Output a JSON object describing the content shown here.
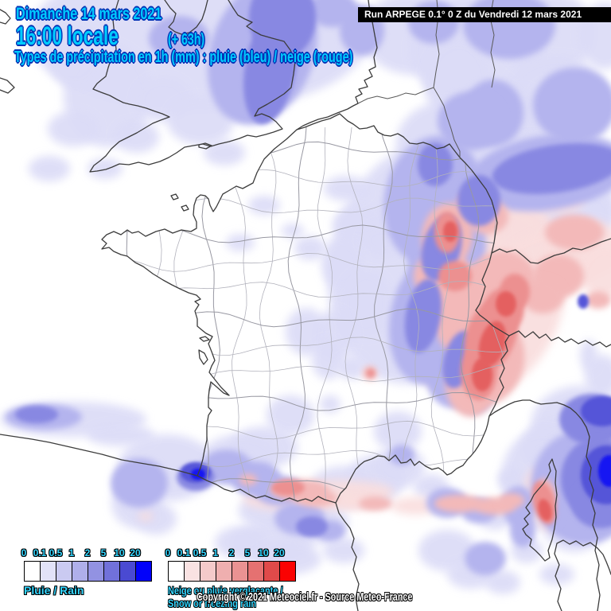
{
  "header": {
    "date_line": "Dimanche 14 mars 2021",
    "time_line": "16:00 locale",
    "time_offset": "(+ 63h)",
    "subtitle": "Types de précipitation en 1h (mm) : pluie (bleu) / neige (rouge)",
    "run_info": "Run ARPEGE 0.1° 0 Z du Vendredi 12 mars 2021",
    "text_color": "#00CCFF",
    "outline_color": "#0030B4"
  },
  "legend": {
    "tick_labels": [
      "0",
      "0.1",
      "0.5",
      "1",
      "2",
      "5",
      "10",
      "20"
    ],
    "rain": {
      "label": "Pluie / Rain",
      "colors": [
        "#FFFFFF",
        "#E2E2F8",
        "#CACAF1",
        "#AFAFEA",
        "#9292E2",
        "#7171DA",
        "#4A4AD2",
        "#0202FA"
      ]
    },
    "snow": {
      "label": "Neige ou pluie verglaçante / Snow or freezing rain",
      "colors": [
        "#FFFFFF",
        "#F9E2E2",
        "#F4CACA",
        "#EFAFAF",
        "#EA9292",
        "#E57171",
        "#E04A4A",
        "#FA0202"
      ]
    }
  },
  "footer": {
    "copyright": "Copyright © 2021 Meteociel.fr - Source Meteo-France"
  },
  "map": {
    "sea_land_color": "#FFFFFF",
    "coast_color": "#3C3C3C",
    "minor_border_color": "#5A5A5A",
    "department_color": "#B2B2BC",
    "region_color": "#9898A2",
    "rain_levels": {
      "1": "#DCDCF7",
      "2": "#B4B4EE",
      "3": "#8888E2",
      "4": "#5555D8",
      "5": "#1212F2"
    },
    "snow_levels": {
      "1": "#F9DEDE",
      "2": "#F3B9B9",
      "3": "#EC9090",
      "4": "#E46060"
    },
    "blobs": [
      [
        "b",
        1,
        250,
        45,
        215,
        95,
        0
      ],
      [
        "b",
        1,
        135,
        120,
        55,
        65,
        0
      ],
      [
        "b",
        1,
        95,
        70,
        35,
        40,
        0
      ],
      [
        "b",
        1,
        205,
        125,
        35,
        28,
        0
      ],
      [
        "b",
        1,
        172,
        172,
        28,
        20,
        0
      ],
      [
        "b",
        1,
        92,
        162,
        32,
        22,
        0
      ],
      [
        "b",
        1,
        62,
        212,
        26,
        16,
        0
      ],
      [
        "b",
        1,
        132,
        212,
        22,
        13,
        0
      ],
      [
        "b",
        1,
        282,
        192,
        26,
        16,
        0
      ],
      [
        "b",
        1,
        252,
        152,
        42,
        30,
        0
      ],
      [
        "b",
        1,
        332,
        258,
        20,
        12,
        0
      ],
      [
        "b",
        1,
        302,
        305,
        18,
        11,
        0
      ],
      [
        "b",
        1,
        368,
        290,
        14,
        9,
        0
      ],
      [
        "b",
        1,
        520,
        42,
        65,
        52,
        0
      ],
      [
        "b",
        1,
        600,
        62,
        85,
        72,
        0
      ],
      [
        "b",
        1,
        688,
        42,
        62,
        52,
        0
      ],
      [
        "b",
        1,
        700,
        132,
        70,
        62,
        0
      ],
      [
        "b",
        1,
        648,
        152,
        48,
        42,
        0
      ],
      [
        "b",
        1,
        575,
        102,
        42,
        52,
        0
      ],
      [
        "b",
        1,
        660,
        202,
        62,
        32,
        0
      ],
      [
        "b",
        1,
        760,
        45,
        32,
        42,
        0
      ],
      [
        "b",
        1,
        660,
        232,
        112,
        62,
        -5
      ],
      [
        "b",
        1,
        690,
        262,
        82,
        62,
        0
      ],
      [
        "b",
        1,
        700,
        268,
        72,
        42,
        0
      ],
      [
        "b",
        1,
        530,
        330,
        115,
        155,
        15
      ],
      [
        "b",
        1,
        560,
        180,
        62,
        52,
        0
      ],
      [
        "b",
        1,
        450,
        282,
        32,
        22,
        0
      ],
      [
        "b",
        1,
        430,
        332,
        26,
        32,
        0
      ],
      [
        "b",
        1,
        460,
        382,
        32,
        42,
        0
      ],
      [
        "b",
        1,
        420,
        422,
        26,
        32,
        0
      ],
      [
        "b",
        1,
        390,
        312,
        20,
        15,
        0
      ],
      [
        "b",
        1,
        480,
        302,
        26,
        20,
        0
      ],
      [
        "b",
        1,
        435,
        237,
        28,
        16,
        0
      ],
      [
        "b",
        1,
        385,
        417,
        26,
        30,
        0
      ],
      [
        "b",
        1,
        412,
        452,
        20,
        25,
        0
      ],
      [
        "b",
        1,
        442,
        462,
        18,
        15,
        0
      ],
      [
        "b",
        1,
        365,
        522,
        30,
        25,
        0
      ],
      [
        "b",
        1,
        332,
        562,
        42,
        26,
        0
      ],
      [
        "b",
        1,
        500,
        542,
        30,
        25,
        0
      ],
      [
        "b",
        1,
        302,
        572,
        46,
        26,
        0
      ],
      [
        "b",
        1,
        210,
        588,
        62,
        42,
        0
      ],
      [
        "b",
        1,
        172,
        632,
        32,
        32,
        0
      ],
      [
        "b",
        1,
        196,
        652,
        26,
        20,
        0
      ],
      [
        "b",
        1,
        342,
        642,
        42,
        24,
        0
      ],
      [
        "b",
        1,
        402,
        657,
        36,
        26,
        0
      ],
      [
        "b",
        1,
        432,
        612,
        42,
        26,
        0
      ],
      [
        "b",
        1,
        472,
        602,
        36,
        30,
        0
      ],
      [
        "b",
        1,
        502,
        587,
        32,
        26,
        0
      ],
      [
        "b",
        1,
        542,
        612,
        22,
        16,
        0
      ],
      [
        "b",
        1,
        622,
        652,
        20,
        14,
        0
      ],
      [
        "b",
        1,
        342,
        682,
        52,
        26,
        0
      ],
      [
        "b",
        1,
        302,
        682,
        32,
        20,
        0
      ],
      [
        "b",
        1,
        362,
        702,
        42,
        20,
        0
      ],
      [
        "b",
        1,
        432,
        692,
        26,
        16,
        0
      ],
      [
        "b",
        1,
        562,
        692,
        36,
        26,
        0
      ],
      [
        "b",
        1,
        592,
        722,
        30,
        18,
        0
      ],
      [
        "b",
        1,
        632,
        732,
        22,
        15,
        0
      ],
      [
        "b",
        1,
        92,
        527,
        92,
        22,
        0
      ],
      [
        "b",
        1,
        152,
        547,
        42,
        14,
        0
      ],
      [
        "b",
        1,
        730,
        532,
        62,
        47,
        0
      ],
      [
        "b",
        1,
        702,
        562,
        47,
        37,
        0
      ],
      [
        "b",
        1,
        682,
        602,
        52,
        62,
        0
      ],
      [
        "b",
        1,
        722,
        652,
        42,
        42,
        0
      ],
      [
        "b",
        1,
        662,
        692,
        20,
        16,
        0
      ],
      [
        "b",
        1,
        642,
        602,
        16,
        13,
        0
      ],
      [
        "b",
        1,
        757,
        472,
        22,
        26,
        0
      ],
      [
        "b",
        1,
        740,
        447,
        11,
        20,
        0
      ],
      [
        "b",
        1,
        415,
        508,
        13,
        11,
        0
      ],
      [
        "b",
        1,
        700,
        722,
        22,
        13,
        0
      ],
      [
        "b",
        2,
        330,
        65,
        65,
        95,
        20
      ],
      [
        "b",
        2,
        225,
        48,
        38,
        28,
        0
      ],
      [
        "b",
        2,
        455,
        38,
        28,
        32,
        0
      ],
      [
        "b",
        2,
        418,
        12,
        32,
        22,
        0
      ],
      [
        "b",
        2,
        545,
        28,
        32,
        27,
        0
      ],
      [
        "b",
        2,
        640,
        32,
        58,
        42,
        0
      ],
      [
        "b",
        2,
        620,
        142,
        38,
        42,
        0
      ],
      [
        "b",
        2,
        722,
        132,
        52,
        47,
        0
      ],
      [
        "b",
        2,
        592,
        152,
        42,
        37,
        0
      ],
      [
        "b",
        2,
        690,
        217,
        102,
        47,
        -8
      ],
      [
        "b",
        2,
        545,
        252,
        62,
        82,
        10
      ],
      [
        "b",
        2,
        562,
        322,
        47,
        72,
        15
      ],
      [
        "b",
        2,
        542,
        402,
        52,
        82,
        10
      ],
      [
        "b",
        2,
        577,
        457,
        42,
        57,
        15
      ],
      [
        "b",
        2,
        597,
        482,
        27,
        37,
        0
      ],
      [
        "b",
        2,
        285,
        587,
        32,
        22,
        0
      ],
      [
        "b",
        2,
        322,
        602,
        32,
        22,
        0
      ],
      [
        "b",
        2,
        352,
        617,
        32,
        19,
        0
      ],
      [
        "b",
        2,
        377,
        652,
        32,
        21,
        0
      ],
      [
        "b",
        2,
        562,
        632,
        26,
        19,
        0
      ],
      [
        "b",
        2,
        602,
        642,
        23,
        16,
        0
      ],
      [
        "b",
        2,
        610,
        702,
        26,
        21,
        0
      ],
      [
        "b",
        2,
        55,
        524,
        48,
        16,
        0
      ],
      [
        "b",
        2,
        652,
        637,
        21,
        26,
        0
      ],
      [
        "b",
        2,
        657,
        667,
        16,
        21,
        0
      ],
      [
        "b",
        2,
        735,
        612,
        68,
        72,
        0
      ],
      [
        "b",
        2,
        505,
        572,
        16,
        13,
        0
      ],
      [
        "b",
        2,
        415,
        667,
        19,
        13,
        0
      ],
      [
        "b",
        2,
        175,
        607,
        36,
        31,
        0
      ],
      [
        "b",
        2,
        695,
        642,
        10,
        20,
        0
      ],
      [
        "b",
        3,
        340,
        85,
        32,
        72,
        10
      ],
      [
        "b",
        3,
        355,
        22,
        42,
        52,
        0
      ],
      [
        "b",
        3,
        700,
        212,
        82,
        30,
        -8
      ],
      [
        "b",
        3,
        555,
        312,
        24,
        42,
        15
      ],
      [
        "b",
        3,
        532,
        397,
        22,
        47,
        10
      ],
      [
        "b",
        3,
        577,
        452,
        19,
        37,
        15
      ],
      [
        "b",
        3,
        602,
        252,
        27,
        32,
        0
      ],
      [
        "b",
        3,
        547,
        207,
        22,
        27,
        0
      ],
      [
        "b",
        3,
        246,
        600,
        24,
        17,
        0
      ],
      [
        "b",
        3,
        392,
        662,
        20,
        13,
        0
      ],
      [
        "b",
        3,
        46,
        521,
        27,
        11,
        0
      ],
      [
        "b",
        3,
        745,
        527,
        42,
        32,
        0
      ],
      [
        "b",
        3,
        752,
        602,
        47,
        52,
        0
      ],
      [
        "b",
        3,
        755,
        632,
        37,
        32,
        0
      ],
      [
        "b",
        4,
        246,
        594,
        19,
        13,
        0
      ],
      [
        "b",
        4,
        757,
        517,
        27,
        19,
        0
      ],
      [
        "b",
        4,
        762,
        597,
        32,
        37,
        0
      ],
      [
        "b",
        4,
        733,
        379,
        7,
        9,
        0
      ],
      [
        "b",
        5,
        249,
        596,
        9,
        7,
        0
      ],
      [
        "b",
        5,
        766,
        592,
        14,
        20,
        0
      ],
      [
        "r",
        1,
        610,
        382,
        95,
        125,
        25
      ],
      [
        "r",
        1,
        577,
        302,
        57,
        62,
        0
      ],
      [
        "r",
        1,
        640,
        302,
        62,
        52,
        0
      ],
      [
        "r",
        1,
        690,
        332,
        62,
        42,
        -10
      ],
      [
        "r",
        1,
        732,
        312,
        52,
        37,
        0
      ],
      [
        "r",
        1,
        760,
        342,
        32,
        32,
        0
      ],
      [
        "r",
        1,
        400,
        623,
        95,
        19,
        -3
      ],
      [
        "r",
        1,
        448,
        630,
        26,
        11,
        0
      ],
      [
        "r",
        1,
        522,
        636,
        31,
        11,
        0
      ],
      [
        "r",
        1,
        682,
        628,
        21,
        40,
        -15
      ],
      [
        "r",
        1,
        183,
        649,
        9,
        6,
        0
      ],
      [
        "r",
        1,
        702,
        252,
        32,
        16,
        0
      ],
      [
        "r",
        2,
        562,
        297,
        32,
        42,
        10
      ],
      [
        "r",
        2,
        557,
        347,
        37,
        32,
        0
      ],
      [
        "r",
        2,
        600,
        392,
        52,
        62,
        25
      ],
      [
        "r",
        2,
        612,
        452,
        47,
        57,
        10
      ],
      [
        "r",
        2,
        592,
        482,
        32,
        42,
        0
      ],
      [
        "r",
        2,
        632,
        352,
        42,
        37,
        0
      ],
      [
        "r",
        2,
        702,
        347,
        32,
        27,
        0
      ],
      [
        "r",
        2,
        682,
        372,
        27,
        22,
        0
      ],
      [
        "r",
        2,
        722,
        292,
        37,
        22,
        0
      ],
      [
        "r",
        2,
        752,
        377,
        16,
        11,
        0
      ],
      [
        "r",
        2,
        612,
        272,
        27,
        22,
        0
      ],
      [
        "r",
        2,
        592,
        257,
        19,
        16,
        0
      ],
      [
        "r",
        2,
        465,
        469,
        9,
        9,
        0
      ],
      [
        "r",
        2,
        377,
        616,
        37,
        13,
        0
      ],
      [
        "r",
        2,
        397,
        626,
        27,
        11,
        0
      ],
      [
        "r",
        2,
        577,
        633,
        31,
        11,
        0
      ],
      [
        "r",
        2,
        622,
        636,
        26,
        11,
        0
      ],
      [
        "r",
        2,
        643,
        629,
        16,
        9,
        0
      ],
      [
        "r",
        2,
        312,
        603,
        11,
        7,
        0
      ],
      [
        "r",
        2,
        472,
        633,
        21,
        9,
        0
      ],
      [
        "r",
        2,
        687,
        620,
        11,
        19,
        -15
      ],
      [
        "r",
        3,
        562,
        292,
        16,
        26,
        0
      ],
      [
        "r",
        3,
        572,
        347,
        21,
        19,
        0
      ],
      [
        "r",
        3,
        617,
        422,
        31,
        47,
        20
      ],
      [
        "r",
        3,
        602,
        467,
        23,
        36,
        0
      ],
      [
        "r",
        3,
        632,
        392,
        26,
        31,
        20
      ],
      [
        "r",
        3,
        647,
        367,
        19,
        23,
        0
      ],
      [
        "r",
        3,
        362,
        613,
        21,
        10,
        0
      ],
      [
        "r",
        3,
        684,
        632,
        14,
        28,
        -15
      ],
      [
        "r",
        3,
        466,
        469,
        5,
        5,
        0
      ],
      [
        "r",
        4,
        619,
        432,
        16,
        29,
        15
      ],
      [
        "r",
        4,
        606,
        471,
        13,
        21,
        0
      ],
      [
        "r",
        4,
        636,
        382,
        13,
        16,
        0
      ],
      [
        "r",
        4,
        566,
        291,
        9,
        13,
        0
      ],
      [
        "r",
        4,
        685,
        641,
        8,
        14,
        -15
      ]
    ]
  }
}
